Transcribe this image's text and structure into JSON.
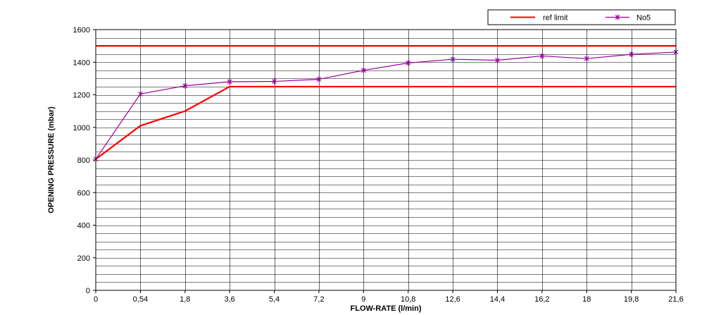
{
  "chart_data": {
    "type": "line",
    "title": "",
    "xlabel": "FLOW-RATE (l/min)",
    "ylabel": "OPENING PRESSURE (mbar)",
    "categories": [
      "0",
      "0,54",
      "1,8",
      "3,6",
      "5,4",
      "7,2",
      "9",
      "10,8",
      "12,6",
      "14,4",
      "16,2",
      "18",
      "19,8",
      "21,6"
    ],
    "ylim": [
      0,
      1600
    ],
    "yticks": [
      0,
      200,
      400,
      600,
      800,
      1000,
      1200,
      1400,
      1600
    ],
    "y_minor_step": 50,
    "grid": true,
    "legend_position": "top-right",
    "series": [
      {
        "name": "ref limit",
        "color": "#ff0000",
        "marker": "none",
        "lines": [
          {
            "x_index": [
              0,
              1,
              2,
              3,
              13
            ],
            "values": [
              805,
              1010,
              1100,
              1250,
              1250
            ]
          },
          {
            "x_index": [
              0,
              13
            ],
            "values": [
              1500,
              1500
            ]
          }
        ]
      },
      {
        "name": "No5",
        "color": "#990099",
        "marker": "star",
        "values": [
          805,
          1205,
          1255,
          1280,
          1282,
          1295,
          1350,
          1395,
          1418,
          1412,
          1438,
          1422,
          1448,
          1462
        ]
      }
    ]
  }
}
